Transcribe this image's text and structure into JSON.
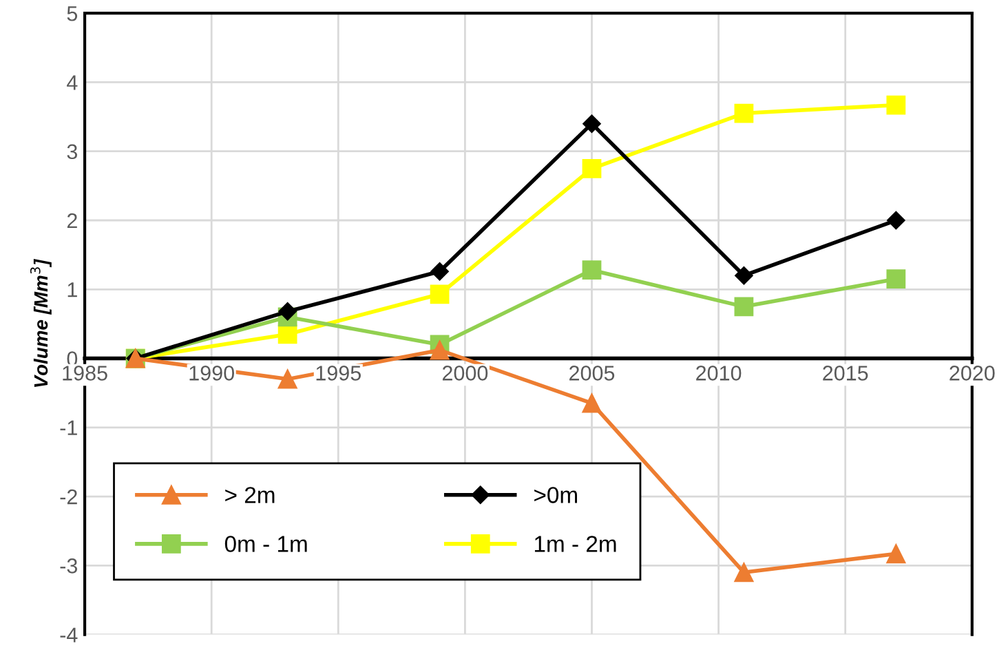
{
  "chart_data": {
    "type": "line",
    "ylabel": "Volume [Mm$^{3}$]",
    "x": [
      1987,
      1993,
      1999,
      2005,
      2011,
      2017
    ],
    "series": [
      {
        "name": "> 2m",
        "color": "#ed7d31",
        "marker": "triangle",
        "values": [
          0,
          -0.3,
          0.12,
          -0.65,
          -3.1,
          -2.83
        ]
      },
      {
        "name": ">0m",
        "color": "#000000",
        "marker": "diamond",
        "values": [
          0,
          0.68,
          1.26,
          3.4,
          1.2,
          2.0
        ]
      },
      {
        "name": "0m - 1m",
        "color": "#92d050",
        "marker": "square",
        "values": [
          0,
          0.6,
          0.2,
          1.28,
          0.75,
          1.15
        ]
      },
      {
        "name": "1m - 2m",
        "color": "#ffff00",
        "marker": "square",
        "values": [
          0,
          0.35,
          0.93,
          2.75,
          3.55,
          3.67
        ]
      }
    ],
    "xlim": [
      1985,
      2020
    ],
    "xticks": [
      1985,
      1990,
      1995,
      2000,
      2005,
      2010,
      2015,
      2020
    ],
    "ylim": [
      -4,
      5
    ],
    "yticks": [
      -4,
      -3,
      -2,
      -1,
      0,
      1,
      2,
      3,
      4,
      5
    ],
    "grid": true,
    "legend": "bottom left",
    "line_style": "solid"
  }
}
